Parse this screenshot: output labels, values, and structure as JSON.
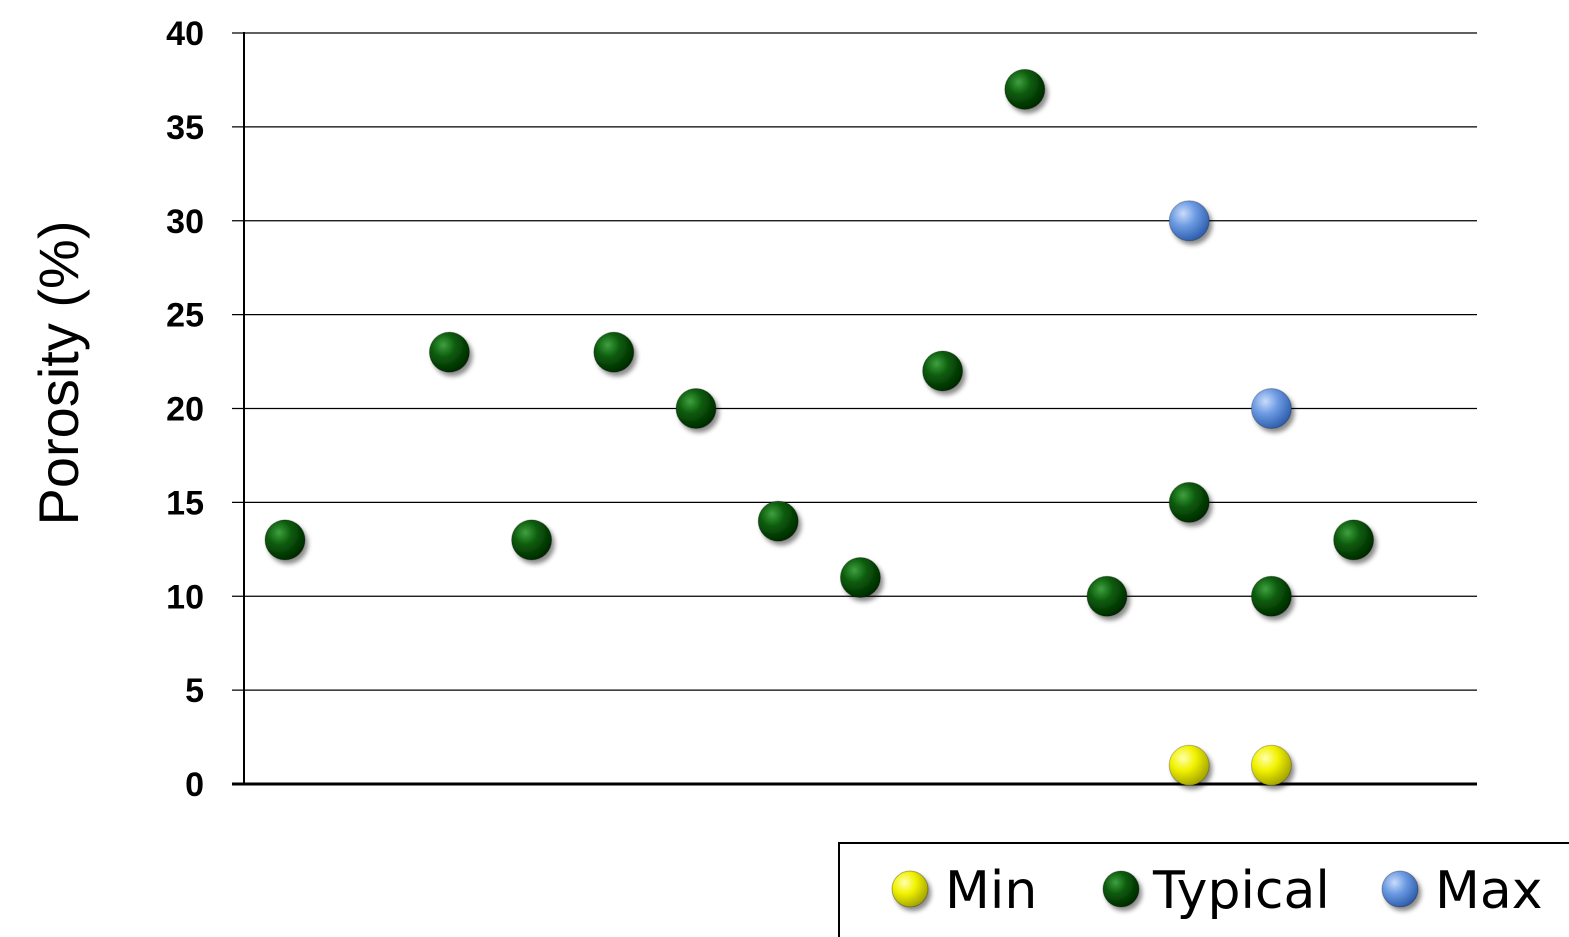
{
  "chart_data": {
    "type": "scatter",
    "title": "",
    "xlabel": "",
    "ylabel": "Porosity (%)",
    "ylim": [
      0,
      40
    ],
    "yticks": [
      0,
      5,
      10,
      15,
      20,
      25,
      30,
      35,
      40
    ],
    "grid": true,
    "legend_position": "bottom-right",
    "series": [
      {
        "name": "Min",
        "color": "#f2f200",
        "points": [
          {
            "x": 12,
            "y": 1
          },
          {
            "x": 13,
            "y": 1
          }
        ]
      },
      {
        "name": "Typical",
        "color": "#0a5a0a",
        "points": [
          {
            "x": 1,
            "y": 13
          },
          {
            "x": 3,
            "y": 23
          },
          {
            "x": 4,
            "y": 13
          },
          {
            "x": 5,
            "y": 23
          },
          {
            "x": 6,
            "y": 20
          },
          {
            "x": 7,
            "y": 14
          },
          {
            "x": 8,
            "y": 11
          },
          {
            "x": 9,
            "y": 22
          },
          {
            "x": 10,
            "y": 37
          },
          {
            "x": 11,
            "y": 10
          },
          {
            "x": 12,
            "y": 15
          },
          {
            "x": 13,
            "y": 10
          },
          {
            "x": 14,
            "y": 13
          }
        ]
      },
      {
        "name": "Max",
        "color": "#5b8fd9",
        "points": [
          {
            "x": 12,
            "y": 30
          },
          {
            "x": 13,
            "y": 20
          }
        ]
      }
    ]
  }
}
